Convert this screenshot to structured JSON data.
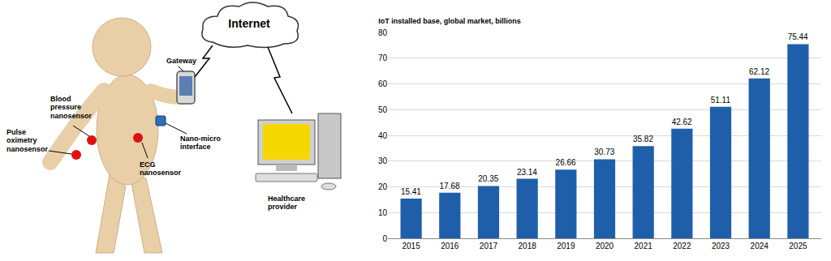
{
  "chart_data": {
    "type": "bar",
    "title": "IoT installed base, global market, billions",
    "categories": [
      "2015",
      "2016",
      "2017",
      "2018",
      "2019",
      "2020",
      "2021",
      "2022",
      "2023",
      "2024",
      "2025"
    ],
    "values": [
      15.41,
      17.68,
      20.35,
      23.14,
      26.66,
      30.73,
      35.82,
      42.62,
      51.11,
      62.12,
      75.44
    ],
    "color": "#1f5faa",
    "ylim": [
      0,
      80
    ],
    "yticks": [
      0,
      10,
      20,
      30,
      40,
      50,
      60,
      70,
      80
    ],
    "grid": true,
    "data_labels": true
  },
  "diagram": {
    "internet": [
      "Internet"
    ],
    "gateway": [
      "Gateway"
    ],
    "blood_pressure": [
      "Blood",
      "pressure",
      "nanosensor"
    ],
    "pulse_oximetry": [
      "Pulse",
      "oximetry",
      "nanosensor"
    ],
    "nano_micro": [
      "Nano-micro",
      "interface"
    ],
    "ecg": [
      "ECG",
      "nanosensor"
    ],
    "healthcare": [
      "Healthcare",
      "provider"
    ]
  }
}
